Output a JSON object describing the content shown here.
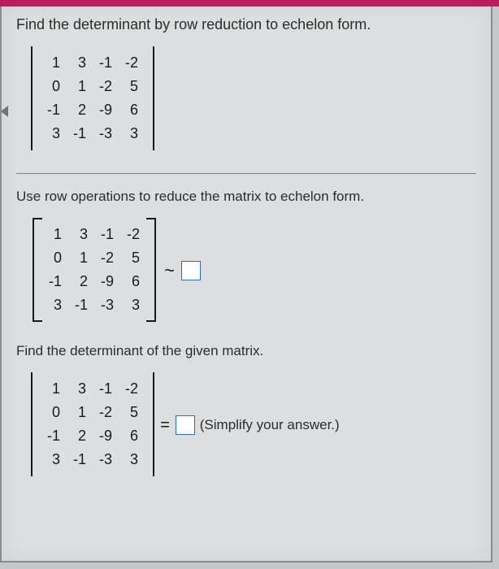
{
  "topbar_color": "#b81e5c",
  "page_bg": "#dcdedf",
  "header": {
    "instruction": "Find the determinant by row reduction to echelon form."
  },
  "matrix_main": {
    "type": "determinant",
    "rows": [
      [
        "1",
        "3",
        "-1",
        "-2"
      ],
      [
        "0",
        "1",
        "-2",
        "5"
      ],
      [
        "-1",
        "2",
        "-9",
        "6"
      ],
      [
        "3",
        "-1",
        "-3",
        "3"
      ]
    ]
  },
  "step1": {
    "instruction": "Use row operations to reduce the matrix to echelon form.",
    "matrix": {
      "type": "bracket",
      "rows": [
        [
          "1",
          "3",
          "-1",
          "-2"
        ],
        [
          "0",
          "1",
          "-2",
          "5"
        ],
        [
          "-1",
          "2",
          "-9",
          "6"
        ],
        [
          "3",
          "-1",
          "-3",
          "3"
        ]
      ]
    },
    "relation": "~"
  },
  "step2": {
    "instruction": "Find the determinant of the given matrix.",
    "matrix": {
      "type": "determinant",
      "rows": [
        [
          "1",
          "3",
          "-1",
          "-2"
        ],
        [
          "0",
          "1",
          "-2",
          "5"
        ],
        [
          "-1",
          "2",
          "-9",
          "6"
        ],
        [
          "3",
          "-1",
          "-3",
          "3"
        ]
      ]
    },
    "relation": "=",
    "note": "(Simplify your answer.)"
  },
  "style": {
    "cell_fontsize": 18,
    "border_color": "#1a1a1a",
    "answer_box_border": "#2b6cb0",
    "answer_box_bg": "#ffffff"
  }
}
